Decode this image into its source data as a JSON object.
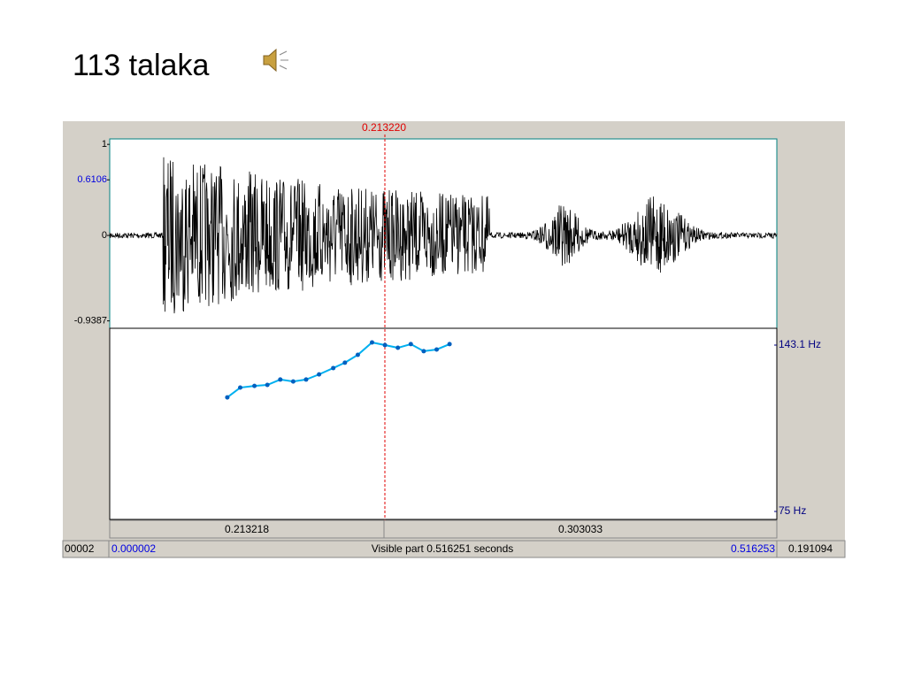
{
  "slide": {
    "title": "113 talaka"
  },
  "praat": {
    "cursor_label": "0.213220",
    "waveform": {
      "ylim": [
        -1.02,
        1.06
      ],
      "yticks": [
        1,
        0.6106,
        0,
        -0.9387
      ]
    },
    "pitch": {
      "type": "line",
      "color": "#00b0f0",
      "xlim": [
        2e-06,
        0.516253
      ],
      "ylim": [
        75,
        143.1
      ],
      "yticks": [
        {
          "value": 143.1,
          "label": "143.1 Hz"
        },
        {
          "value": 75,
          "label": "75 Hz"
        }
      ],
      "x": [
        0.091,
        0.101,
        0.112,
        0.122,
        0.132,
        0.142,
        0.152,
        0.162,
        0.173,
        0.182,
        0.192,
        0.203,
        0.213,
        0.223,
        0.233,
        0.243,
        0.253,
        0.263
      ],
      "values": [
        121.7,
        125.7,
        126.4,
        126.8,
        129.0,
        128.2,
        129.0,
        131.1,
        133.7,
        135.9,
        139.1,
        144.2,
        143.1,
        142.0,
        143.5,
        140.6,
        141.3,
        143.5
      ]
    },
    "selection_bar": [
      "0.213218",
      "0.303033"
    ],
    "status": {
      "left_clip": "00002",
      "start": "0.000002",
      "visible": "Visible part 0.516251 seconds",
      "end": "0.516253",
      "right": "0.191094"
    }
  }
}
